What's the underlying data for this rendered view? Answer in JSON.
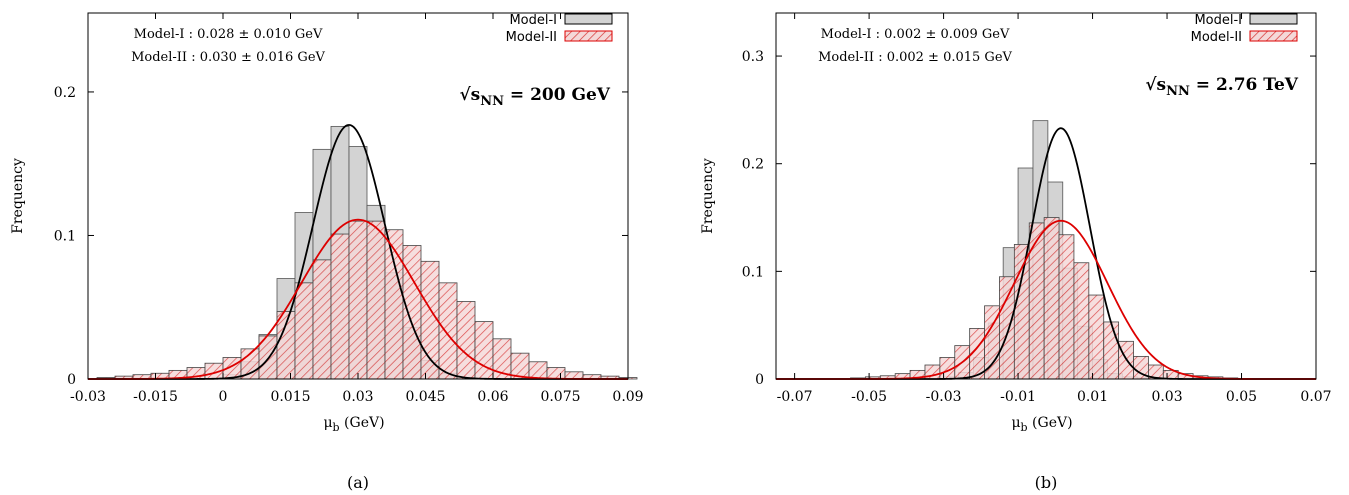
{
  "chart_data": [
    {
      "type": "histogram",
      "caption": "(a)",
      "xlabel": "μ",
      "xlabel_sub": "b",
      "xlabel_unit": " (GeV)",
      "ylabel": "Frequency",
      "xlim": [
        -0.03,
        0.09
      ],
      "ylim": [
        0,
        0.255
      ],
      "xticks": [
        -0.03,
        -0.015,
        0,
        0.015,
        0.03,
        0.045,
        0.06,
        0.075,
        0.09
      ],
      "xtick_labels": [
        "-0.03",
        "-0.015",
        "0",
        "0.015",
        "0.03",
        "0.045",
        "0.06",
        "0.075",
        "0.09"
      ],
      "yticks": [
        0,
        0.1,
        0.2
      ],
      "ytick_labels": [
        "0",
        "0.1",
        "0.2"
      ],
      "energy": {
        "prefix": "√s",
        "sub": "NN",
        "suffix": " = 200 GeV"
      },
      "annotations": [
        "Model-I : 0.028 ± 0.010 GeV",
        "Model-II : 0.030 ± 0.016 GeV"
      ],
      "legend_position": "top-right",
      "series": [
        {
          "name": "Model-I",
          "style": "solid-gray",
          "fill": "#d3d3d3",
          "line": "#000000",
          "bin_start": 0.0,
          "bin_width": 0.004,
          "values": [
            0.003,
            0.012,
            0.031,
            0.07,
            0.116,
            0.16,
            0.176,
            0.162,
            0.121,
            0.074,
            0.036,
            0.013,
            0.004,
            0.001
          ],
          "fit": {
            "mean": 0.028,
            "sigma": 0.008,
            "peak": 0.177
          }
        },
        {
          "name": "Model-II",
          "style": "hatched-red",
          "fill": "#e8b4b4",
          "line": "#dd0000",
          "bin_start": -0.028,
          "bin_width": 0.004,
          "values": [
            0.001,
            0.002,
            0.003,
            0.004,
            0.006,
            0.008,
            0.011,
            0.015,
            0.021,
            0.03,
            0.047,
            0.067,
            0.083,
            0.101,
            0.11,
            0.11,
            0.104,
            0.093,
            0.082,
            0.067,
            0.054,
            0.04,
            0.028,
            0.018,
            0.012,
            0.008,
            0.005,
            0.003,
            0.002,
            0.001
          ],
          "fit": {
            "mean": 0.03,
            "sigma": 0.0125,
            "peak": 0.111
          }
        }
      ]
    },
    {
      "type": "histogram",
      "caption": "(b)",
      "xlabel": "μ",
      "xlabel_sub": "b",
      "xlabel_unit": " (GeV)",
      "ylabel": "Frequency",
      "xlim": [
        -0.075,
        0.07
      ],
      "ylim": [
        0,
        0.34
      ],
      "xticks": [
        -0.07,
        -0.05,
        -0.03,
        -0.01,
        0.01,
        0.03,
        0.05,
        0.07
      ],
      "xtick_labels": [
        "-0.07",
        "-0.05",
        "-0.03",
        "-0.01",
        "0.01",
        "0.03",
        "0.05",
        "0.07"
      ],
      "yticks": [
        0,
        0.1,
        0.2,
        0.3
      ],
      "ytick_labels": [
        "0",
        "0.1",
        "0.2",
        "0.3"
      ],
      "energy": {
        "prefix": "√s",
        "sub": "NN",
        "suffix": " = 2.76 TeV"
      },
      "annotations": [
        "Model-I : 0.002 ± 0.009 GeV",
        "Model-II : 0.002 ± 0.015 GeV"
      ],
      "legend_position": "top-right",
      "series": [
        {
          "name": "Model-I",
          "style": "solid-gray",
          "fill": "#d3d3d3",
          "line": "#000000",
          "bin_start": -0.03,
          "bin_width": 0.004,
          "values": [
            0.002,
            0.006,
            0.02,
            0.052,
            0.122,
            0.196,
            0.24,
            0.183,
            0.103,
            0.049,
            0.018,
            0.005,
            0.002,
            0.001
          ],
          "fit": {
            "mean": 0.0015,
            "sigma": 0.0078,
            "peak": 0.233
          }
        },
        {
          "name": "Model-II",
          "style": "hatched-red",
          "fill": "#e8b4b4",
          "line": "#dd0000",
          "bin_start": -0.055,
          "bin_width": 0.004,
          "values": [
            0.001,
            0.002,
            0.003,
            0.005,
            0.008,
            0.013,
            0.02,
            0.031,
            0.047,
            0.068,
            0.095,
            0.125,
            0.145,
            0.15,
            0.134,
            0.108,
            0.078,
            0.053,
            0.035,
            0.021,
            0.013,
            0.008,
            0.005,
            0.003,
            0.002,
            0.001
          ],
          "fit": {
            "mean": 0.0015,
            "sigma": 0.0125,
            "peak": 0.147
          }
        }
      ]
    }
  ]
}
